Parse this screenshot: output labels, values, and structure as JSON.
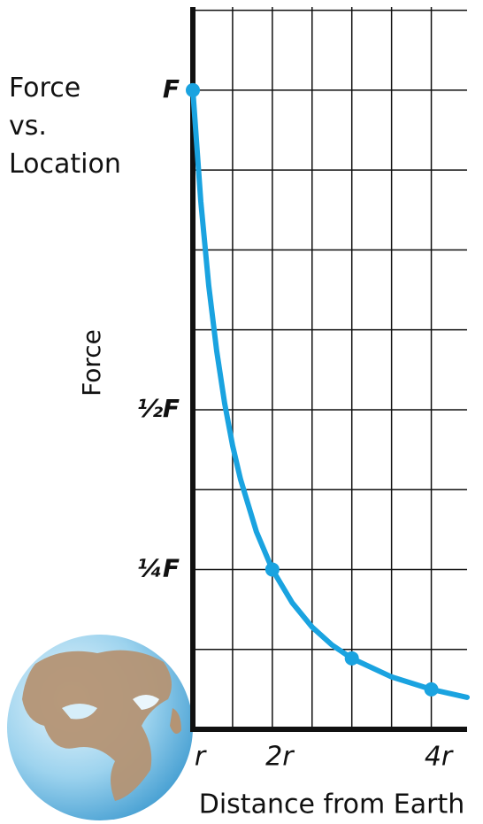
{
  "chart_data": {
    "type": "line",
    "title": "Force vs. Location",
    "xlabel": "Distance from Earth",
    "ylabel": "Force",
    "xlim": [
      1,
      4.45
    ],
    "ylim": [
      0,
      1.13
    ],
    "xticks": [
      {
        "value": 1,
        "label": "r"
      },
      {
        "value": 2,
        "label": "2r"
      },
      {
        "value": 4,
        "label": "4r"
      }
    ],
    "yticks": [
      {
        "value": 0.25,
        "label": "¼F"
      },
      {
        "value": 0.5,
        "label": "½F"
      },
      {
        "value": 1,
        "label": "F"
      }
    ],
    "xgrid": [
      1.5,
      2,
      2.5,
      3,
      3.5,
      4
    ],
    "ygrid": [
      0.125,
      0.25,
      0.375,
      0.5,
      0.625,
      0.75,
      0.875,
      1,
      1.125
    ],
    "grid": true,
    "color": "#1aa3e0",
    "x": [
      1,
      1.1,
      1.2,
      1.3,
      1.4,
      1.5,
      1.6,
      1.8,
      2,
      2.25,
      2.5,
      2.75,
      3,
      3.5,
      4,
      4.45
    ],
    "values": [
      1,
      0.826,
      0.694,
      0.592,
      0.51,
      0.444,
      0.391,
      0.309,
      0.25,
      0.198,
      0.16,
      0.132,
      0.111,
      0.082,
      0.0625,
      0.05
    ],
    "points": {
      "x": [
        1,
        2,
        3,
        4
      ],
      "values": [
        1,
        0.25,
        0.111,
        0.0625
      ]
    }
  }
}
